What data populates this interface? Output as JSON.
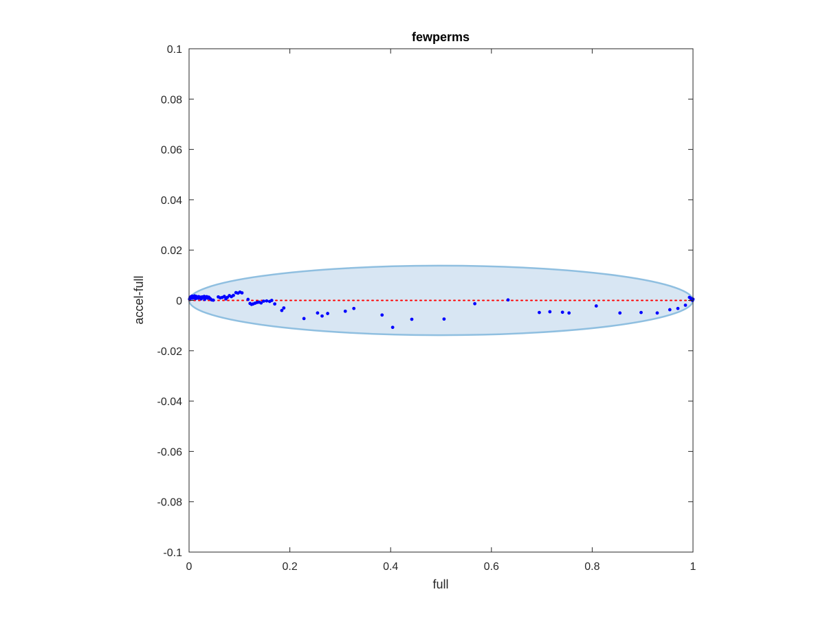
{
  "chart_data": {
    "type": "scatter",
    "title": "fewperms",
    "xlabel": "full",
    "ylabel": "accel-full",
    "xlim": [
      0,
      1
    ],
    "ylim": [
      -0.1,
      0.1
    ],
    "x_ticks": [
      0,
      0.2,
      0.4,
      0.6,
      0.8,
      1
    ],
    "x_tick_labels": [
      "0",
      "0.2",
      "0.4",
      "0.6",
      "0.8",
      "1"
    ],
    "y_ticks": [
      -0.1,
      -0.08,
      -0.06,
      -0.04,
      -0.02,
      0,
      0.02,
      0.04,
      0.06,
      0.08,
      0.1
    ],
    "y_tick_labels": [
      "-0.1",
      "-0.08",
      "-0.06",
      "-0.04",
      "-0.02",
      "0",
      "0.02",
      "0.04",
      "0.06",
      "0.08",
      "0.1"
    ],
    "grid": false,
    "reference_line": {
      "y": 0,
      "style": "dotted",
      "color": "#ff0000"
    },
    "ellipse": {
      "center": [
        0.5,
        0
      ],
      "x_radius": 0.5,
      "y_radius": 0.0138,
      "fill": "#d8e6f3",
      "stroke": "#8fbfe0"
    },
    "marker_color": "#0000ff",
    "series": [
      {
        "points": [
          [
            0.001,
            0.0005
          ],
          [
            0.002,
            0.0012
          ],
          [
            0.003,
            0.0008
          ],
          [
            0.004,
            0.0015
          ],
          [
            0.005,
            0.001
          ],
          [
            0.006,
            0.0017
          ],
          [
            0.007,
            0.0009
          ],
          [
            0.008,
            0.0014
          ],
          [
            0.01,
            0.0011
          ],
          [
            0.011,
            0.0018
          ],
          [
            0.013,
            0.0007
          ],
          [
            0.014,
            0.0016
          ],
          [
            0.016,
            0.0012
          ],
          [
            0.018,
            0.0009
          ],
          [
            0.019,
            0.0015
          ],
          [
            0.021,
            0.001
          ],
          [
            0.022,
            0.0013
          ],
          [
            0.024,
            0.0006
          ],
          [
            0.026,
            0.0014
          ],
          [
            0.028,
            0.0012
          ],
          [
            0.03,
            0.0016
          ],
          [
            0.031,
            0.0004
          ],
          [
            0.033,
            0.0011
          ],
          [
            0.035,
            0.0015
          ],
          [
            0.037,
            0.0009
          ],
          [
            0.039,
            0.0013
          ],
          [
            0.04,
            0.001
          ],
          [
            0.042,
            0.0007
          ],
          [
            0.045,
            0.0002
          ],
          [
            0.048,
            0.0001
          ],
          [
            0.058,
            0.0014
          ],
          [
            0.062,
            0.001
          ],
          [
            0.066,
            0.0012
          ],
          [
            0.07,
            0.0016
          ],
          [
            0.073,
            0.0006
          ],
          [
            0.076,
            0.0012
          ],
          [
            0.08,
            0.0019
          ],
          [
            0.084,
            0.0015
          ],
          [
            0.088,
            0.002
          ],
          [
            0.093,
            0.0031
          ],
          [
            0.097,
            0.0029
          ],
          [
            0.101,
            0.0033
          ],
          [
            0.105,
            0.003
          ],
          [
            0.117,
            0.0004
          ],
          [
            0.121,
            -0.0012
          ],
          [
            0.124,
            -0.0016
          ],
          [
            0.127,
            -0.0014
          ],
          [
            0.131,
            -0.0011
          ],
          [
            0.135,
            -0.0008
          ],
          [
            0.139,
            -0.0007
          ],
          [
            0.143,
            -0.001
          ],
          [
            0.148,
            -0.0003
          ],
          [
            0.154,
            -0.0002
          ],
          [
            0.16,
            -0.0004
          ],
          [
            0.164,
            0.0
          ],
          [
            0.17,
            -0.0014
          ],
          [
            0.184,
            -0.004
          ],
          [
            0.188,
            -0.003
          ],
          [
            0.228,
            -0.0072
          ],
          [
            0.255,
            -0.005
          ],
          [
            0.264,
            -0.0062
          ],
          [
            0.275,
            -0.0052
          ],
          [
            0.31,
            -0.0043
          ],
          [
            0.327,
            -0.0032
          ],
          [
            0.383,
            -0.0058
          ],
          [
            0.404,
            -0.0107
          ],
          [
            0.442,
            -0.0075
          ],
          [
            0.506,
            -0.0074
          ],
          [
            0.567,
            -0.0013
          ],
          [
            0.633,
            0.0002
          ],
          [
            0.695,
            -0.0048
          ],
          [
            0.716,
            -0.0045
          ],
          [
            0.741,
            -0.0047
          ],
          [
            0.754,
            -0.005
          ],
          [
            0.808,
            -0.0022
          ],
          [
            0.855,
            -0.005
          ],
          [
            0.897,
            -0.0048
          ],
          [
            0.929,
            -0.005
          ],
          [
            0.954,
            -0.0037
          ],
          [
            0.97,
            -0.0032
          ],
          [
            0.985,
            -0.0019
          ],
          [
            0.993,
            0.0012
          ],
          [
            0.996,
            0.0008
          ],
          [
            0.998,
            0.0003
          ],
          [
            0.999,
            0.0
          ],
          [
            1.0,
            0.0005
          ]
        ]
      }
    ]
  }
}
